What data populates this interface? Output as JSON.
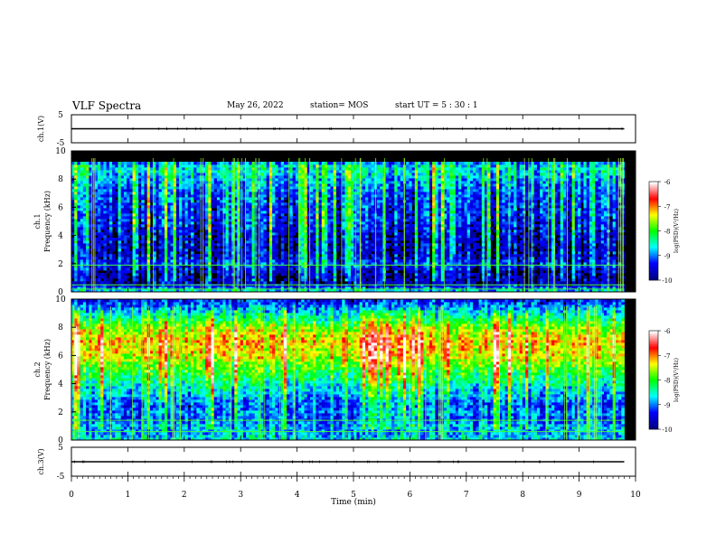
{
  "header": {
    "title": "VLF Spectra",
    "date": "May 26, 2022",
    "station": "station= MOS",
    "start": "start  UT  =   5  : 30 : 1"
  },
  "chart_data": [
    {
      "type": "line",
      "panel": "ch1-waveform",
      "ylabel": "ch.1(V)",
      "ylim": [
        -5,
        5
      ],
      "yticks": [
        "5",
        "-5"
      ],
      "series": [
        {
          "x": [
            0,
            9.8
          ],
          "y": [
            0,
            0
          ]
        }
      ]
    },
    {
      "type": "heatmap",
      "panel": "ch1-spectrogram",
      "ylabel": "ch.1\nFrequency (kHz)",
      "ylim": [
        0,
        10
      ],
      "yticks": [
        "0",
        "2",
        "4",
        "6",
        "8",
        "10"
      ],
      "colorbar": {
        "label": "log(PSD)(V²/Hz)",
        "range": [
          -10,
          -6
        ],
        "ticks": [
          "-6",
          "-7",
          "-8",
          "-9",
          "-10"
        ]
      },
      "intensity_profile": {
        "freq_khz": [
          0,
          0.5,
          1,
          1.5,
          2,
          2.5,
          3,
          4,
          5,
          6,
          7,
          8,
          8.5,
          9,
          9.5,
          10
        ],
        "log_psd": [
          -8.5,
          -9.6,
          -9.8,
          -9.7,
          -9.3,
          -9.6,
          -9.7,
          -9.6,
          -9.4,
          -9.3,
          -9.2,
          -8.9,
          -8.6,
          -8.7,
          -10,
          -10
        ]
      },
      "lines_khz": [
        0.2,
        0.5,
        1.9
      ]
    },
    {
      "type": "heatmap",
      "panel": "ch2-spectrogram",
      "ylabel": "ch.2\nFrequency (kHz)",
      "ylim": [
        0,
        10
      ],
      "yticks": [
        "0",
        "2",
        "4",
        "6",
        "8",
        "10"
      ],
      "colorbar": {
        "label": "log(PSD)(V²/Hz)",
        "range": [
          -10,
          -6
        ],
        "ticks": [
          "-6",
          "-7",
          "-8",
          "-9",
          "-10"
        ]
      },
      "intensity_profile": {
        "freq_khz": [
          0,
          0.5,
          1,
          1.5,
          2,
          2.5,
          3,
          4,
          5,
          6,
          7,
          8,
          8.5,
          9,
          9.5,
          10
        ],
        "log_psd": [
          -8.6,
          -8.9,
          -8.8,
          -9.2,
          -9.0,
          -9.2,
          -8.9,
          -8.5,
          -8.0,
          -7.4,
          -7.2,
          -7.7,
          -8.2,
          -8.6,
          -9.0,
          -9.4
        ]
      },
      "lines_khz": [
        0.6,
        1.4
      ]
    },
    {
      "type": "line",
      "panel": "ch3-waveform",
      "ylabel": "ch.3(V)",
      "ylim": [
        -5,
        5
      ],
      "yticks": [
        "5",
        "-5"
      ],
      "series": [
        {
          "x": [
            0,
            9.8
          ],
          "y": [
            0,
            0
          ]
        }
      ]
    }
  ],
  "xaxis": {
    "label": "Time  (min)",
    "range": [
      0,
      10
    ],
    "ticks": [
      "0",
      "1",
      "2",
      "3",
      "4",
      "5",
      "6",
      "7",
      "8",
      "9",
      "10"
    ]
  },
  "colors": {
    "colormap": [
      "#000080",
      "#0000ff",
      "#00ffff",
      "#00ff00",
      "#ffff00",
      "#ff0000",
      "#ffffff"
    ],
    "background": "#000000"
  }
}
